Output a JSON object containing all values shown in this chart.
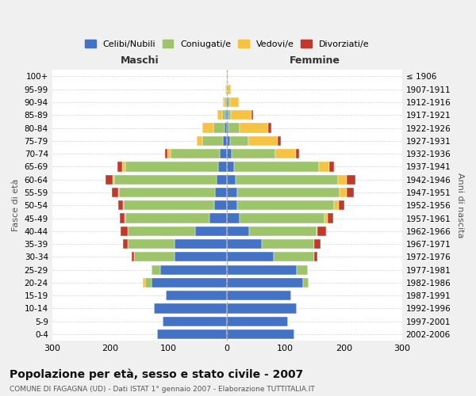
{
  "age_groups": [
    "0-4",
    "5-9",
    "10-14",
    "15-19",
    "20-24",
    "25-29",
    "30-34",
    "35-39",
    "40-44",
    "45-49",
    "50-54",
    "55-59",
    "60-64",
    "65-69",
    "70-74",
    "75-79",
    "80-84",
    "85-89",
    "90-94",
    "95-99",
    "100+"
  ],
  "birth_years": [
    "2002-2006",
    "1997-2001",
    "1992-1996",
    "1987-1991",
    "1982-1986",
    "1977-1981",
    "1972-1976",
    "1967-1971",
    "1962-1966",
    "1957-1961",
    "1952-1956",
    "1947-1951",
    "1942-1946",
    "1937-1941",
    "1932-1936",
    "1927-1931",
    "1922-1926",
    "1917-1921",
    "1912-1916",
    "1907-1911",
    "≤ 1906"
  ],
  "males": {
    "celibi": [
      120,
      110,
      125,
      105,
      130,
      115,
      90,
      90,
      55,
      30,
      22,
      20,
      18,
      15,
      12,
      7,
      5,
      3,
      2,
      1,
      0
    ],
    "coniugati": [
      0,
      0,
      0,
      0,
      10,
      15,
      70,
      80,
      115,
      145,
      155,
      165,
      175,
      160,
      85,
      35,
      18,
      5,
      3,
      1,
      0
    ],
    "vedovi": [
      0,
      0,
      0,
      0,
      5,
      0,
      0,
      0,
      0,
      1,
      1,
      2,
      3,
      5,
      5,
      10,
      20,
      8,
      2,
      1,
      0
    ],
    "divorziati": [
      0,
      0,
      0,
      0,
      0,
      0,
      3,
      8,
      12,
      8,
      8,
      10,
      12,
      8,
      5,
      0,
      0,
      0,
      0,
      0,
      0
    ]
  },
  "females": {
    "nubili": [
      115,
      105,
      120,
      110,
      130,
      120,
      80,
      60,
      38,
      22,
      18,
      18,
      15,
      12,
      8,
      5,
      3,
      2,
      2,
      0,
      0
    ],
    "coniugate": [
      0,
      0,
      0,
      0,
      10,
      18,
      70,
      90,
      115,
      145,
      165,
      175,
      175,
      145,
      75,
      32,
      18,
      5,
      3,
      1,
      0
    ],
    "vedove": [
      0,
      0,
      0,
      0,
      0,
      0,
      0,
      0,
      2,
      5,
      8,
      12,
      15,
      18,
      35,
      50,
      50,
      35,
      15,
      5,
      1
    ],
    "divorziate": [
      0,
      0,
      0,
      0,
      0,
      0,
      5,
      10,
      15,
      10,
      10,
      12,
      15,
      8,
      5,
      5,
      5,
      2,
      0,
      0,
      0
    ]
  },
  "colors": {
    "celibi": "#4472C4",
    "coniugati": "#9DC36B",
    "vedovi": "#F5C242",
    "divorziati": "#C0392B"
  },
  "xlim": 300,
  "title": "Popolazione per età, sesso e stato civile - 2007",
  "subtitle": "COMUNE DI FAGAGNA (UD) - Dati ISTAT 1° gennaio 2007 - Elaborazione TUTTITALIA.IT",
  "xlabel_left": "Maschi",
  "xlabel_right": "Femmine",
  "ylabel_left": "Fasce di età",
  "ylabel_right": "Anni di nascita",
  "legend_labels": [
    "Celibi/Nubili",
    "Coniugati/e",
    "Vedovi/e",
    "Divorziati/e"
  ],
  "bg_color": "#f0f0f0",
  "plot_bg_color": "#ffffff"
}
